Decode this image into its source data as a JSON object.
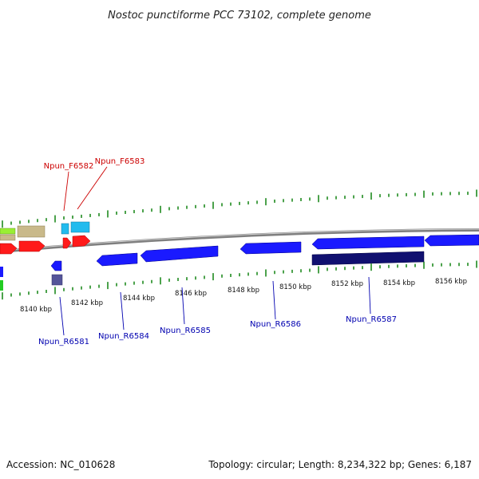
{
  "title": "Nostoc punctiforme PCC 73102, complete genome",
  "footer": {
    "accession": "Accession: NC_010628",
    "summary": "Topology: circular; Length: 8,234,322 bp; Genes: 6,187"
  },
  "colors": {
    "backbone": "#7f7f7f",
    "tick": "#1f8a1f",
    "fwd_label": "#cc0000",
    "rev_label": "#0000b0",
    "cds_blue": "#1a1aff",
    "cds_navy": "#101070",
    "red": "#ff1a1a",
    "tan": "#c9b98a",
    "lime": "#99ee33",
    "cyan": "#22bbee",
    "green": "#22cc22",
    "slate": "#555599"
  },
  "scale_labels": [
    "8140 kbp",
    "8142 kbp",
    "8144 kbp",
    "8146 kbp",
    "8148 kbp",
    "8150 kbp",
    "8152 kbp",
    "8154 kbp",
    "8156 kbp"
  ],
  "forward_genes": [
    {
      "name": "Npun_F6582"
    },
    {
      "name": "Npun_F6583"
    }
  ],
  "reverse_genes": [
    {
      "name": "Npun_R6581"
    },
    {
      "name": "Npun_R6584"
    },
    {
      "name": "Npun_R6585"
    },
    {
      "name": "Npun_R6586"
    },
    {
      "name": "Npun_R6587"
    }
  ]
}
